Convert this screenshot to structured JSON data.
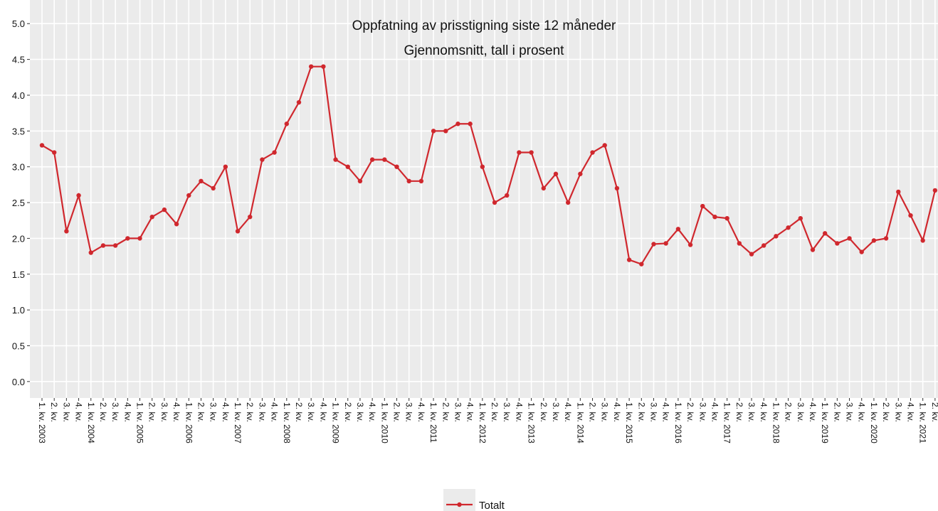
{
  "chart_data": {
    "type": "line",
    "title": "Oppfatning av prisstigning siste 12 måneder",
    "subtitle": "Gjennomsnitt, tall i prosent",
    "categories": [
      "1. kv. 2003",
      "2. kv.",
      "3. kv.",
      "4. kv.",
      "1. kv. 2004",
      "2. kv.",
      "3. kv.",
      "4. kv.",
      "1. kv. 2005",
      "2. kv.",
      "3. kv.",
      "4. kv.",
      "1. kv. 2006",
      "2. kv.",
      "3. kv.",
      "4. kv.",
      "1. kv. 2007",
      "2. kv.",
      "3. kv.",
      "4. kv.",
      "1. kv. 2008",
      "2. kv.",
      "3. kv.",
      "4. kv.",
      "1. kv. 2009",
      "2. kv.",
      "3. kv.",
      "4. kv.",
      "1. kv. 2010",
      "2. kv.",
      "3. kv.",
      "4. kv.",
      "1. kv. 2011",
      "2. kv.",
      "3. kv.",
      "4. kv.",
      "1. kv. 2012",
      "2. kv.",
      "3. kv.",
      "4. kv.",
      "1. kv. 2013",
      "2. kv.",
      "3. kv.",
      "4. kv.",
      "1. kv. 2014",
      "2. kv.",
      "3. kv.",
      "4. kv.",
      "1. kv. 2015",
      "2. kv.",
      "3. kv.",
      "4. kv.",
      "1. kv. 2016",
      "2. kv.",
      "3. kv.",
      "4. kv.",
      "1. kv. 2017",
      "2. kv.",
      "3. kv.",
      "4. kv.",
      "1. kv. 2018",
      "2. kv.",
      "3. kv.",
      "4. kv.",
      "1. kv. 2019",
      "2. kv.",
      "3. kv.",
      "4. kv.",
      "1. kv. 2020",
      "2. kv.",
      "3. kv.",
      "4. kv.",
      "1. kv. 2021",
      "2. kv."
    ],
    "series": [
      {
        "name": "Totalt",
        "color": "#d0282e",
        "values": [
          3.3,
          3.2,
          2.1,
          2.6,
          1.8,
          1.9,
          1.9,
          2.0,
          2.0,
          2.3,
          2.4,
          2.2,
          2.6,
          2.8,
          2.7,
          3.0,
          2.1,
          2.3,
          3.1,
          3.2,
          3.6,
          3.9,
          4.4,
          4.4,
          3.1,
          3.0,
          2.8,
          3.1,
          3.1,
          3.0,
          2.8,
          2.8,
          3.5,
          3.5,
          3.6,
          3.6,
          3.0,
          2.5,
          2.6,
          3.2,
          3.2,
          2.7,
          2.9,
          2.5,
          2.9,
          3.2,
          3.3,
          2.7,
          1.7,
          1.64,
          1.92,
          1.93,
          2.13,
          1.91,
          2.45,
          2.3,
          2.28,
          1.93,
          1.78,
          1.9,
          2.03,
          2.15,
          2.28,
          1.84,
          2.07,
          1.93,
          2.0,
          1.81,
          1.97,
          2.0,
          2.65,
          2.32,
          1.97,
          2.67
        ]
      }
    ],
    "ylim": [
      -0.23,
      5.33
    ],
    "yticks": [
      {
        "value": 0,
        "label": "0.0"
      },
      0.5,
      {
        "value": 1,
        "label": "1.0"
      },
      1.5,
      {
        "value": 2,
        "label": "2.0"
      },
      2.5,
      {
        "value": 3,
        "label": "3.0"
      },
      3.5,
      {
        "value": 4,
        "label": "4.0"
      },
      4.5,
      {
        "value": 5,
        "label": "5.0"
      }
    ],
    "grid": true,
    "legend": "bottom"
  }
}
